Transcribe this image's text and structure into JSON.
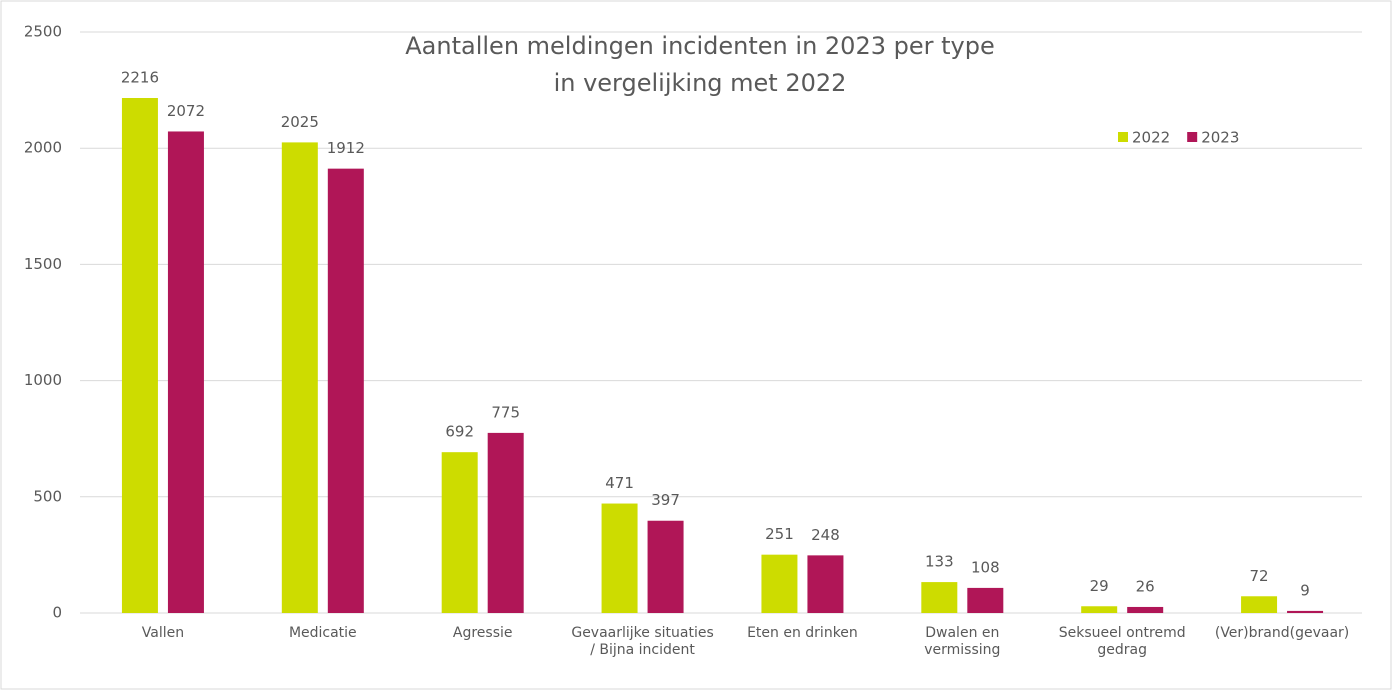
{
  "chart_data": {
    "type": "bar",
    "title": [
      "Aantallen meldingen incidenten in 2023 per type",
      "in vergelijking met 2022"
    ],
    "categories": [
      "Vallen",
      "Medicatie",
      "Agressie",
      "Gevaarlijke situaties / Bijna incident",
      "Eten en drinken",
      "Dwalen en vermissing",
      "Seksueel ontremd gedrag",
      "(Ver)brand(gevaar)"
    ],
    "series": [
      {
        "name": "2022",
        "color": "#cddc00",
        "values": [
          2216,
          2025,
          692,
          471,
          251,
          133,
          29,
          72
        ]
      },
      {
        "name": "2023",
        "color": "#b01657",
        "values": [
          2072,
          1912,
          775,
          397,
          248,
          108,
          26,
          9
        ]
      }
    ],
    "ylim": [
      0,
      2500
    ],
    "yticks": [
      0,
      500,
      1000,
      1500,
      2000,
      2500
    ],
    "grid": true,
    "legend": "top-right"
  }
}
